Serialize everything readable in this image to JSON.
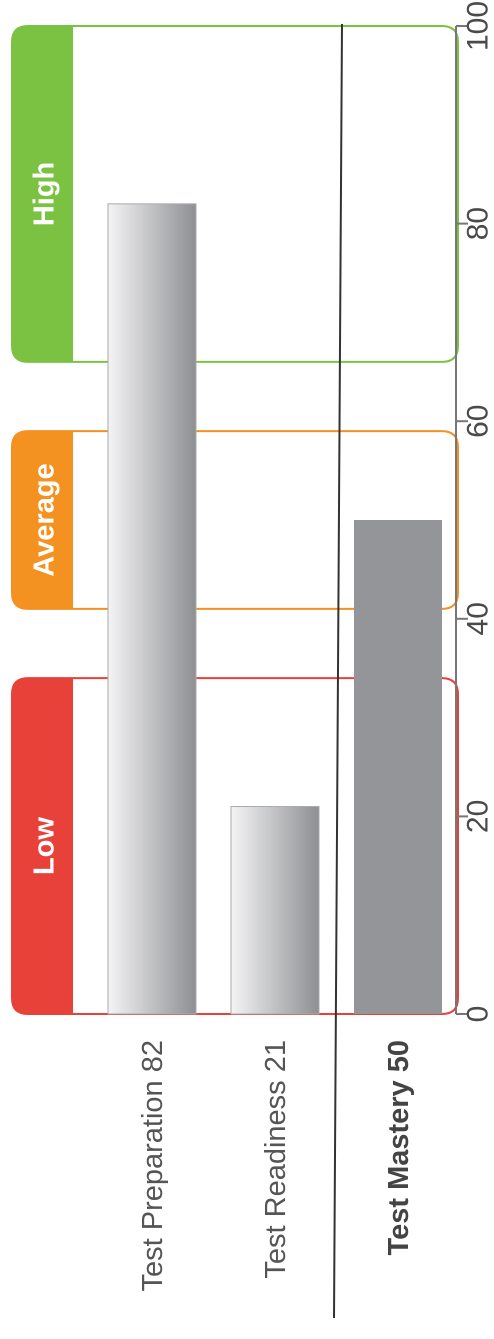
{
  "chart_data": {
    "type": "bar",
    "orientation": "horizontal",
    "categories": [
      "Test Preparation 82",
      "Test Readiness 21",
      "Test Mastery 50"
    ],
    "values": [
      82,
      21,
      50
    ],
    "xlim": [
      0,
      100
    ],
    "xticks": [
      0,
      20,
      40,
      60,
      80,
      100
    ],
    "bands": [
      {
        "label": "Low",
        "from": 0,
        "to": 34,
        "color": "#e8413a"
      },
      {
        "label": "Average",
        "from": 41,
        "to": 59,
        "color": "#f39220"
      },
      {
        "label": "High",
        "from": 66,
        "to": 100,
        "color": "#7cc242"
      }
    ],
    "bar_styles": [
      "gradient",
      "gradient",
      "solid"
    ],
    "highlight_category": "Test Mastery 50",
    "grid": false
  },
  "colors": {
    "bar_solid": "#939598",
    "bar_gradient_light": "#f4f4f5",
    "bar_gradient_dark": "#8e8f92",
    "axis": "#777777"
  }
}
